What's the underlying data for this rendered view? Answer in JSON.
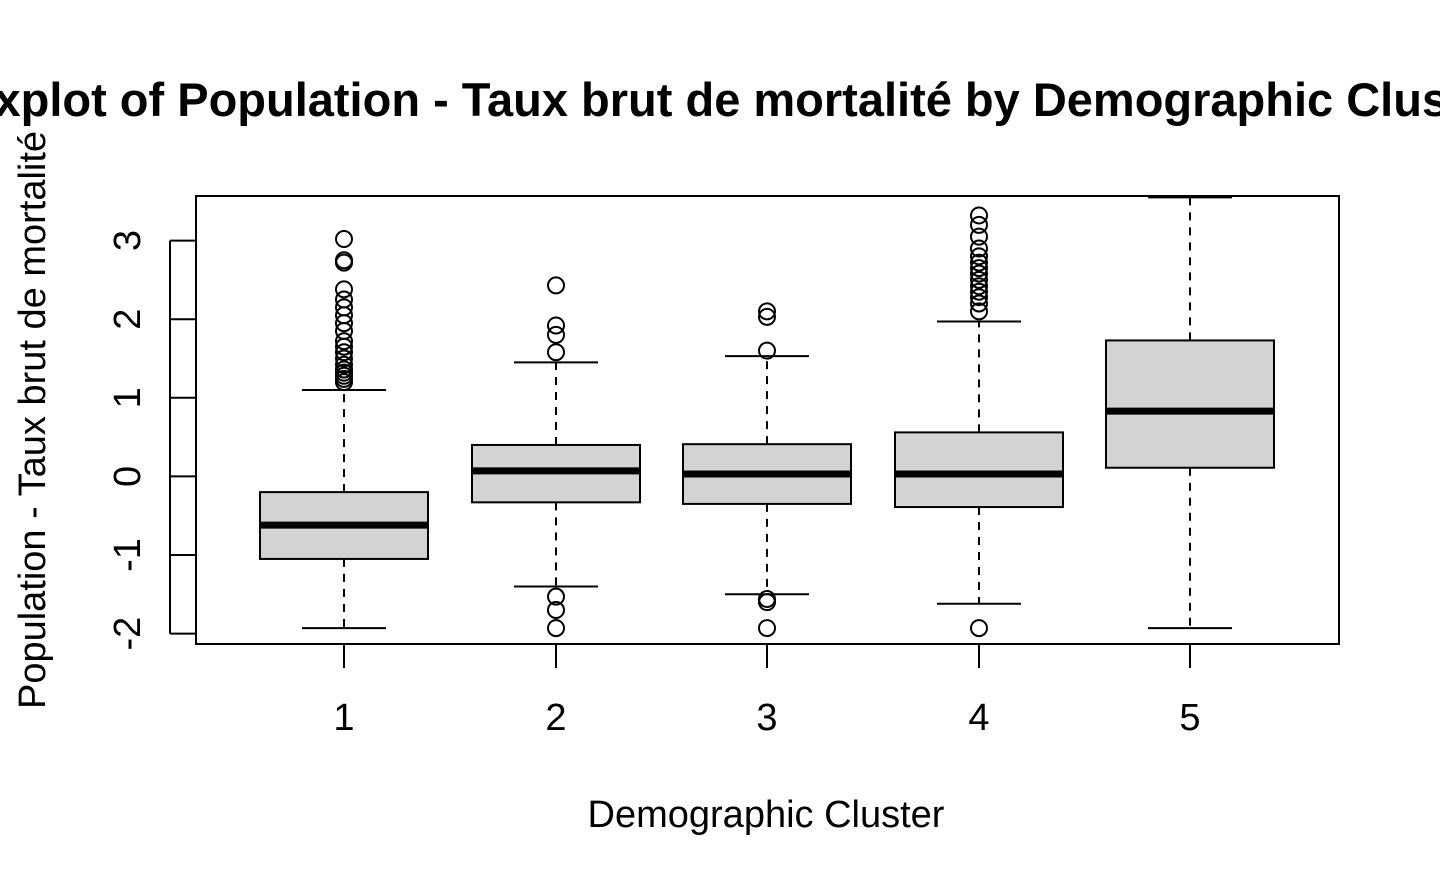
{
  "chart_data": {
    "type": "boxplot",
    "title": "Boxplot of Population - Taux brut de mortalité by Demographic Cluster",
    "xlabel": "Demographic Cluster",
    "ylabel": "Population - Taux brut de mortalité",
    "categories": [
      "1",
      "2",
      "3",
      "4",
      "5"
    ],
    "ylim": [
      -2.15,
      3.55
    ],
    "yticks": [
      -2,
      -1,
      0,
      1,
      2,
      3
    ],
    "yticks_labels": [
      "-2",
      "-1",
      "0",
      "1",
      "2",
      "3"
    ],
    "grid": false,
    "legend": "none",
    "box_fill": "#d3d3d3",
    "boxes": [
      {
        "category": "1",
        "whisker_low": -1.93,
        "q1": -1.05,
        "median": -0.62,
        "q3": -0.2,
        "whisker_high": 1.1,
        "outliers": [
          1.2,
          1.24,
          1.28,
          1.32,
          1.36,
          1.42,
          1.5,
          1.58,
          1.65,
          1.72,
          1.85,
          1.95,
          2.05,
          2.15,
          2.25,
          2.38,
          2.72,
          2.75,
          3.02
        ]
      },
      {
        "category": "2",
        "whisker_low": -1.4,
        "q1": -0.33,
        "median": 0.07,
        "q3": 0.4,
        "whisker_high": 1.45,
        "outliers": [
          -1.53,
          -1.7,
          -1.93,
          1.58,
          1.8,
          1.92,
          2.43
        ]
      },
      {
        "category": "3",
        "whisker_low": -1.5,
        "q1": -0.35,
        "median": 0.03,
        "q3": 0.41,
        "whisker_high": 1.53,
        "outliers": [
          -1.56,
          -1.6,
          -1.93,
          1.6,
          2.03,
          2.1
        ]
      },
      {
        "category": "4",
        "whisker_low": -1.62,
        "q1": -0.39,
        "median": 0.03,
        "q3": 0.56,
        "whisker_high": 1.97,
        "outliers": [
          -1.93,
          2.1,
          2.2,
          2.28,
          2.35,
          2.42,
          2.5,
          2.58,
          2.65,
          2.72,
          2.8,
          2.9,
          3.05,
          3.2,
          3.32
        ]
      },
      {
        "category": "5",
        "whisker_low": -1.93,
        "q1": 0.11,
        "median": 0.83,
        "q3": 1.73,
        "whisker_high": 3.55,
        "outliers": []
      }
    ]
  }
}
